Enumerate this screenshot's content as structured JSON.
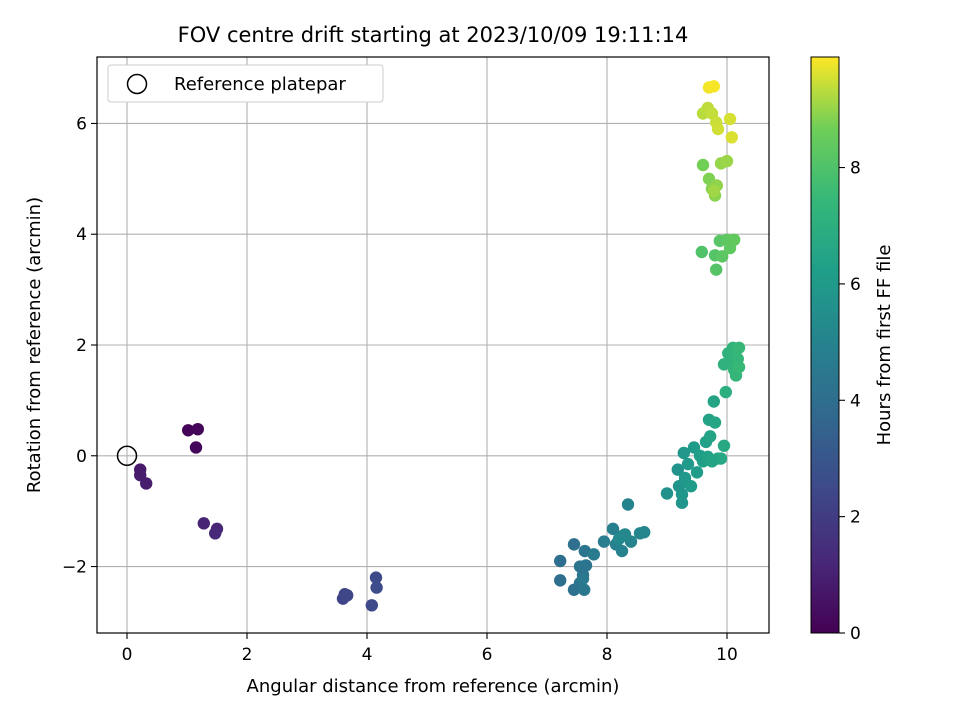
{
  "chart_data": {
    "type": "scatter",
    "title": "FOV centre drift starting at 2023/10/09 19:11:14",
    "xlabel": "Angular distance from reference (arcmin)",
    "ylabel": "Rotation from reference (arcmin)",
    "xlim": [
      -0.5,
      10.7
    ],
    "ylim": [
      -3.2,
      7.2
    ],
    "xticks": [
      0,
      2,
      4,
      6,
      8,
      10
    ],
    "yticks": [
      -2,
      0,
      2,
      4,
      6
    ],
    "grid": true,
    "legend": {
      "position": "top-left",
      "entries": [
        "Reference platepar"
      ]
    },
    "reference_point": {
      "x": 0,
      "y": 0
    },
    "colorbar": {
      "label": "Hours from first FF file",
      "ticks": [
        0,
        2,
        4,
        6,
        8
      ],
      "range": [
        0,
        9.9
      ],
      "colormap": "viridis"
    },
    "points": [
      [
        1.02,
        0.46,
        0.1
      ],
      [
        1.18,
        0.48,
        0.15
      ],
      [
        1.15,
        0.15,
        0.2
      ],
      [
        0.22,
        -0.25,
        0.8
      ],
      [
        0.22,
        -0.35,
        0.85
      ],
      [
        0.32,
        -0.5,
        0.9
      ],
      [
        1.28,
        -1.22,
        1.1
      ],
      [
        1.5,
        -1.32,
        1.2
      ],
      [
        1.47,
        -1.4,
        1.25
      ],
      [
        3.6,
        -2.58,
        2.3
      ],
      [
        3.63,
        -2.5,
        2.35
      ],
      [
        3.67,
        -2.52,
        2.4
      ],
      [
        4.08,
        -2.7,
        2.5
      ],
      [
        4.15,
        -2.2,
        2.55
      ],
      [
        4.16,
        -2.38,
        2.6
      ],
      [
        7.22,
        -1.9,
        4.0
      ],
      [
        7.22,
        -2.25,
        4.05
      ],
      [
        7.45,
        -1.6,
        4.1
      ],
      [
        7.45,
        -2.42,
        4.15
      ],
      [
        7.55,
        -2.3,
        4.2
      ],
      [
        7.55,
        -2.0,
        4.25
      ],
      [
        7.6,
        -2.15,
        4.3
      ],
      [
        7.63,
        -1.72,
        4.35
      ],
      [
        7.65,
        -1.98,
        4.4
      ],
      [
        7.62,
        -2.42,
        4.45
      ],
      [
        7.6,
        -2.22,
        4.5
      ],
      [
        7.78,
        -1.78,
        4.6
      ],
      [
        7.95,
        -1.55,
        4.7
      ],
      [
        8.1,
        -1.32,
        4.8
      ],
      [
        8.15,
        -1.6,
        4.85
      ],
      [
        8.25,
        -1.45,
        4.9
      ],
      [
        8.25,
        -1.72,
        4.95
      ],
      [
        8.35,
        -0.88,
        5.0
      ],
      [
        8.4,
        -1.55,
        5.05
      ],
      [
        8.55,
        -1.4,
        5.1
      ],
      [
        8.62,
        -1.38,
        5.15
      ],
      [
        8.3,
        -1.42,
        5.2
      ],
      [
        8.2,
        -1.5,
        5.25
      ],
      [
        9.0,
        -0.68,
        5.6
      ],
      [
        9.18,
        -0.25,
        5.7
      ],
      [
        9.2,
        -0.55,
        5.75
      ],
      [
        9.25,
        -0.85,
        5.8
      ],
      [
        9.25,
        -0.7,
        5.85
      ],
      [
        9.28,
        0.05,
        5.9
      ],
      [
        9.3,
        -0.4,
        5.95
      ],
      [
        9.35,
        -0.15,
        6.0
      ],
      [
        9.4,
        -0.55,
        6.05
      ],
      [
        9.45,
        0.15,
        6.1
      ],
      [
        9.5,
        -0.3,
        6.15
      ],
      [
        9.55,
        0.0,
        6.2
      ],
      [
        9.6,
        -0.1,
        6.25
      ],
      [
        9.65,
        0.25,
        6.3
      ],
      [
        9.68,
        -0.02,
        6.35
      ],
      [
        9.7,
        0.65,
        6.4
      ],
      [
        9.72,
        0.35,
        6.45
      ],
      [
        9.78,
        0.98,
        6.5
      ],
      [
        9.8,
        0.6,
        6.55
      ],
      [
        9.85,
        -0.05,
        6.6
      ],
      [
        9.9,
        -0.05,
        6.65
      ],
      [
        9.95,
        0.18,
        6.7
      ],
      [
        9.75,
        -0.1,
        6.5
      ],
      [
        9.98,
        1.15,
        7.0
      ],
      [
        9.95,
        1.65,
        7.1
      ],
      [
        10.02,
        1.85,
        7.15
      ],
      [
        10.05,
        1.7,
        7.2
      ],
      [
        10.1,
        1.95,
        7.25
      ],
      [
        10.12,
        1.55,
        7.3
      ],
      [
        10.15,
        1.45,
        7.35
      ],
      [
        10.18,
        1.75,
        7.4
      ],
      [
        10.2,
        1.95,
        7.45
      ],
      [
        10.2,
        1.6,
        7.5
      ],
      [
        9.58,
        3.68,
        8.0
      ],
      [
        9.8,
        3.62,
        8.1
      ],
      [
        9.82,
        3.36,
        8.15
      ],
      [
        9.88,
        3.88,
        8.2
      ],
      [
        9.92,
        3.6,
        8.25
      ],
      [
        10.0,
        3.9,
        8.3
      ],
      [
        10.05,
        3.75,
        8.35
      ],
      [
        10.12,
        3.9,
        8.4
      ],
      [
        9.6,
        5.25,
        8.7
      ],
      [
        9.7,
        5.0,
        8.8
      ],
      [
        9.75,
        4.82,
        8.85
      ],
      [
        9.8,
        4.7,
        8.9
      ],
      [
        9.83,
        4.88,
        8.95
      ],
      [
        9.9,
        5.28,
        9.0
      ],
      [
        10.0,
        5.32,
        9.05
      ],
      [
        9.78,
        4.78,
        9.1
      ],
      [
        9.6,
        6.18,
        9.3
      ],
      [
        9.68,
        6.28,
        9.35
      ],
      [
        9.75,
        6.18,
        9.4
      ],
      [
        9.82,
        6.02,
        9.45
      ],
      [
        9.85,
        5.9,
        9.5
      ],
      [
        10.05,
        6.08,
        9.55
      ],
      [
        10.08,
        5.75,
        9.6
      ],
      [
        9.7,
        6.65,
        9.8
      ],
      [
        9.78,
        6.67,
        9.85
      ]
    ]
  }
}
